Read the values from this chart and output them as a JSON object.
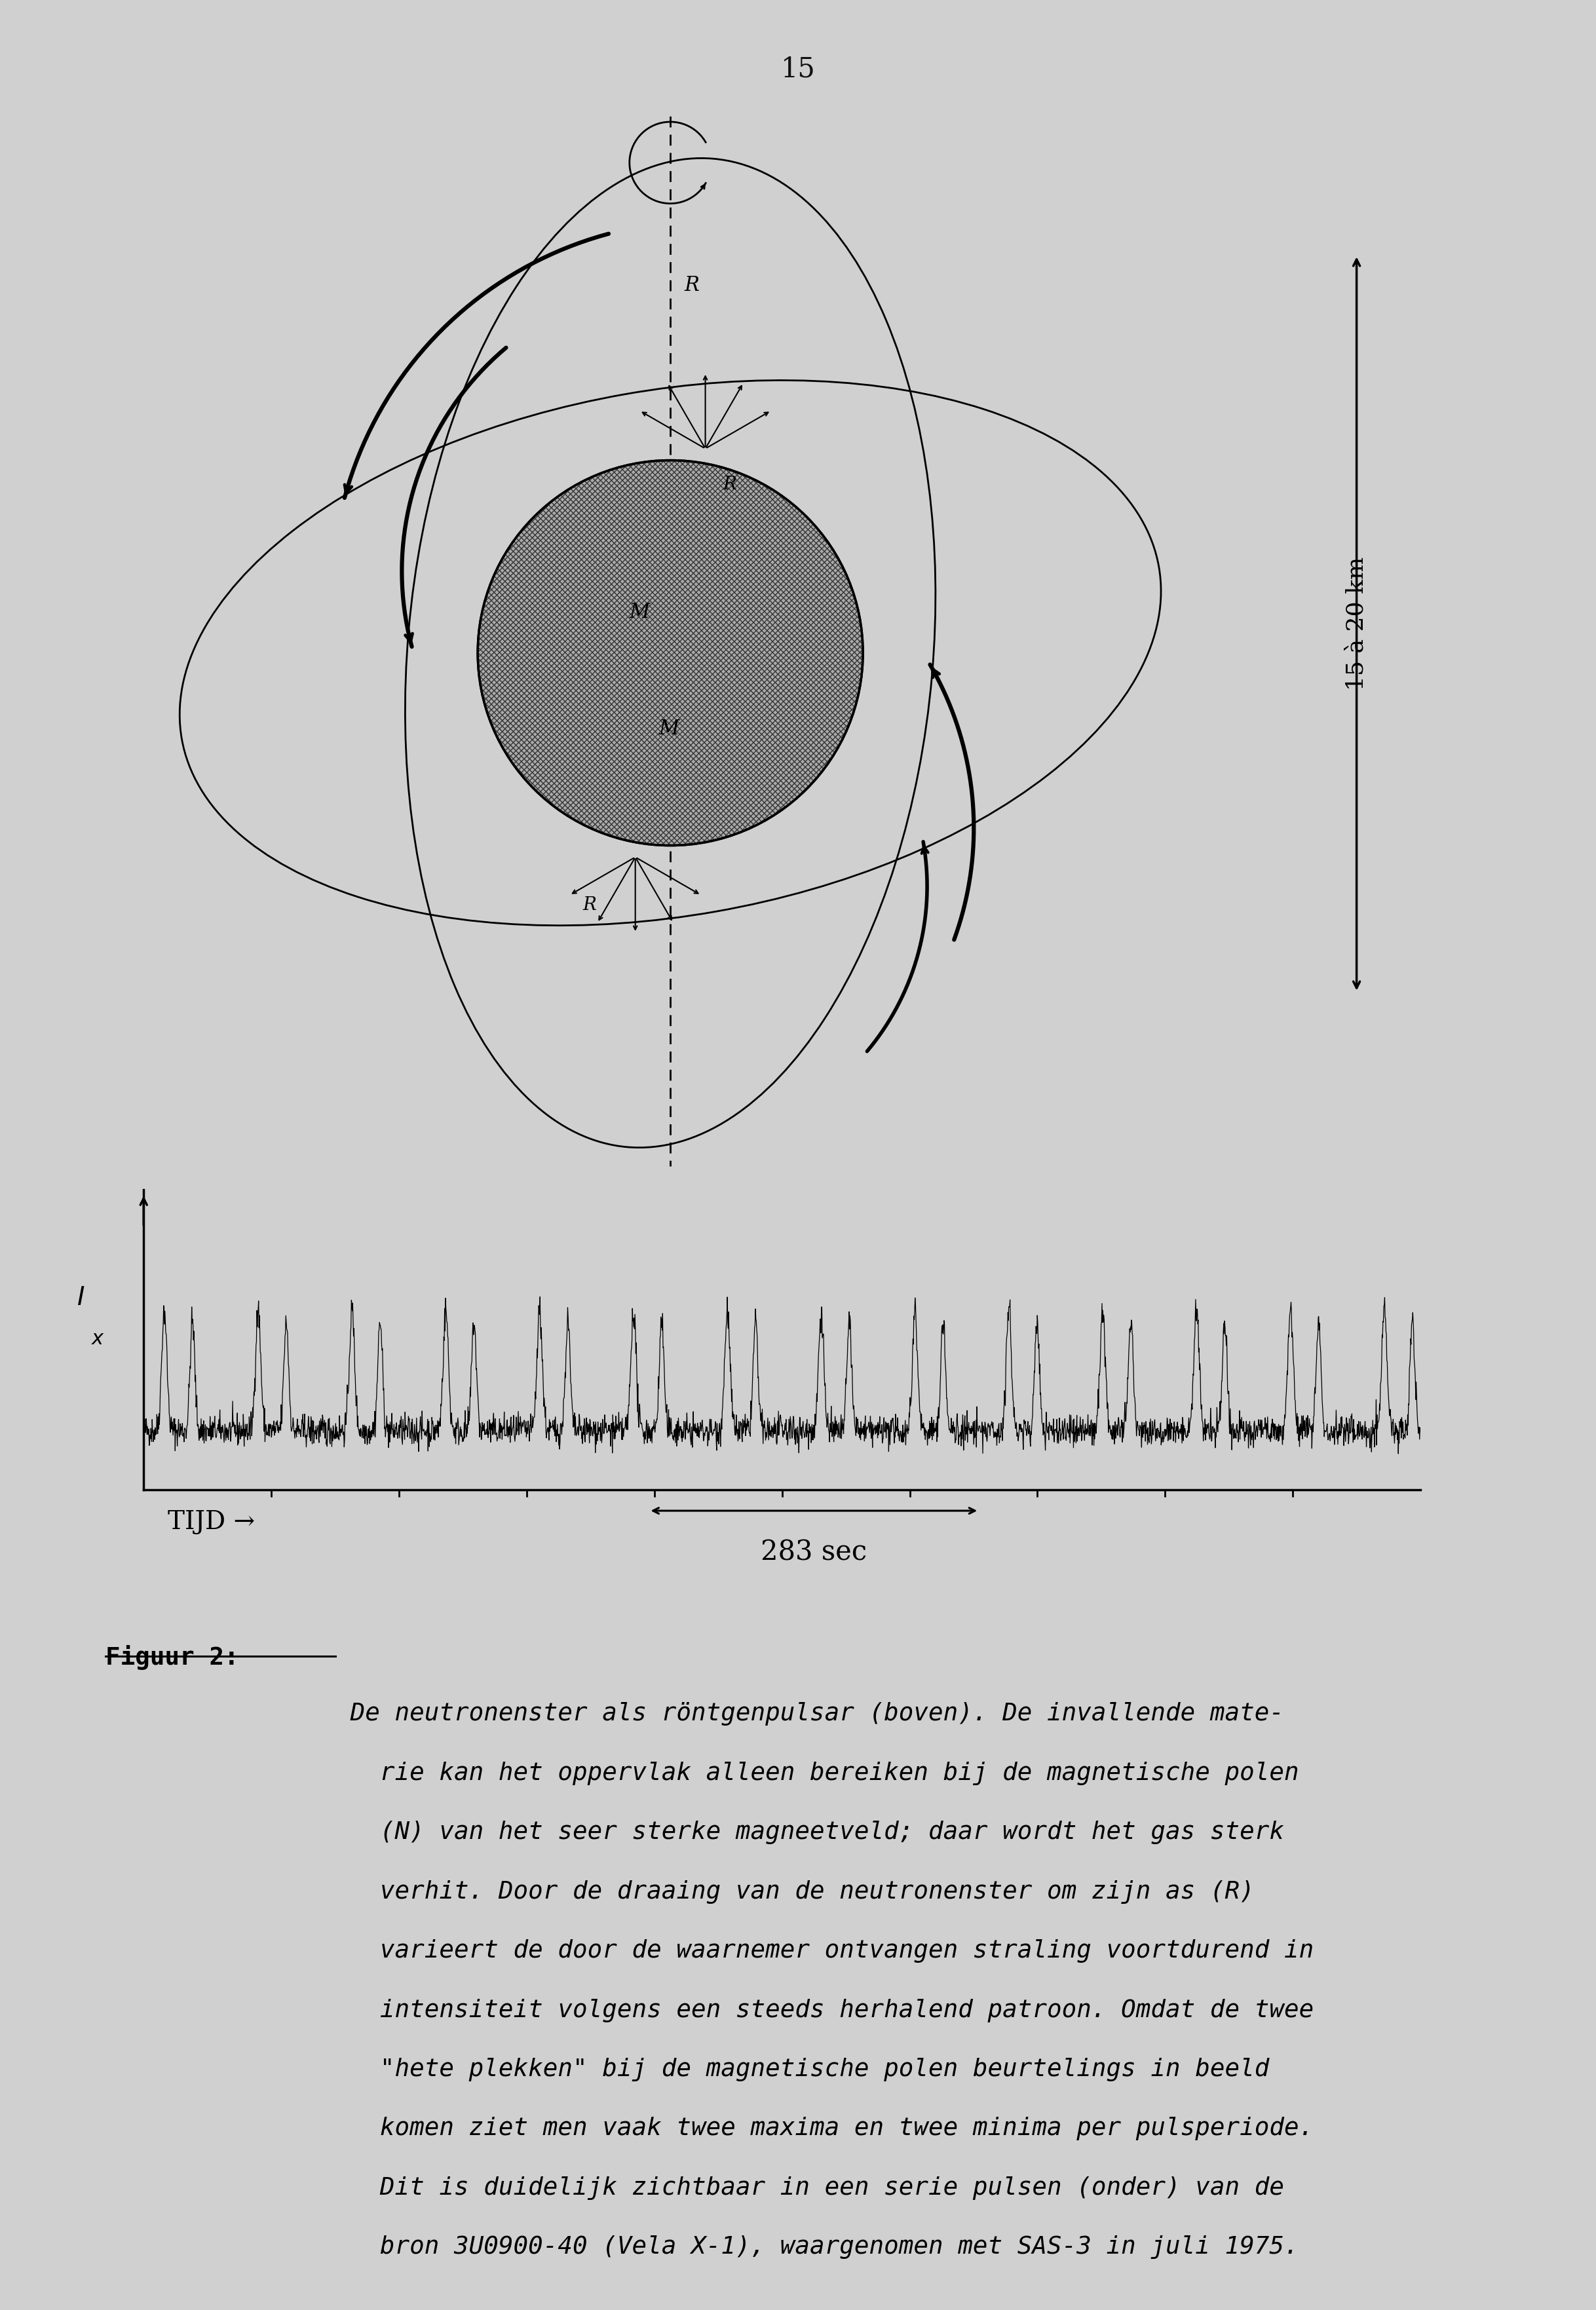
{
  "page_number": "15",
  "background_color": "#d0d0d0",
  "text_color": "#111111",
  "ylabel_signal": "I\nx",
  "xlabel_time": "TIJD →",
  "period_label": "283 sec",
  "size_label": "15 à 20 km",
  "caption_bold": "Figuur 2:",
  "caption_lines": [
    " De neutronenster als röntgenpulsar (boven). De invallende mate-",
    "   rie kan het oppervlak alleen bereiken bij de magnetische polen",
    "   (N) van het seer sterke magneetveld; daar wordt het gas sterk",
    "   verhit. Door de draaing van de neutronenster om zijn as (R)",
    "   varieert de door de waarnemer ontvangen straling voortdurend in",
    "   intensiteit volgens een steeds herhalend patroon. Omdat de twee",
    "   \"hete plekken\" bij de magnetische polen beurtelings in beeld",
    "   komen ziet men vaak twee maxima en twee minima per pulsperiode.",
    "   Dit is duidelijk zichtbaar in een serie pulsen (onder) van de",
    "   bron 3U0900-40 (Vela X-1), waargenomen met SAS-3 in juli 1975."
  ]
}
